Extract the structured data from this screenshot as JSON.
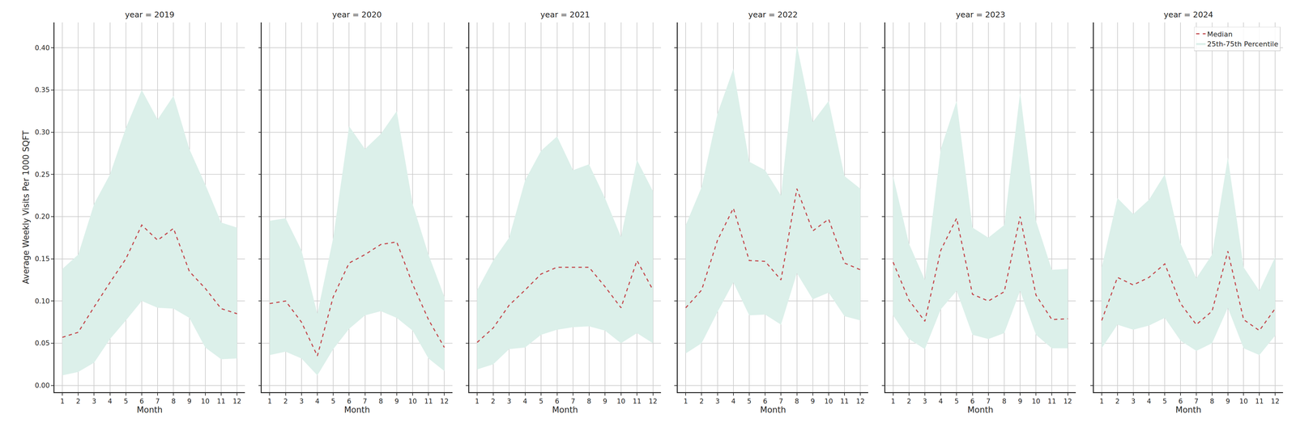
{
  "chart_data": [
    {
      "type": "line",
      "title": "year = 2019",
      "xlabel": "Month",
      "ylabel": "Average Weekly Visits Per 1000 SQFT",
      "x": [
        1,
        2,
        3,
        4,
        5,
        6,
        7,
        8,
        9,
        10,
        11,
        12
      ],
      "xlim": [
        0.5,
        12.5
      ],
      "xticks": [
        1,
        2,
        3,
        4,
        5,
        6,
        7,
        8,
        9,
        10,
        11,
        12
      ],
      "ylim": [
        -0.008,
        0.43
      ],
      "yticks": [
        {
          "value": 0,
          "label": "0.00"
        },
        {
          "value": 0.05,
          "label": "0.05"
        },
        {
          "value": 0.1,
          "label": "0.10"
        },
        {
          "value": 0.15,
          "label": "0.15"
        },
        {
          "value": 0.2,
          "label": "0.20"
        },
        {
          "value": 0.25,
          "label": "0.25"
        },
        {
          "value": 0.3,
          "label": "0.30"
        },
        {
          "value": 0.35,
          "label": "0.35"
        },
        {
          "value": 0.4,
          "label": "0.40"
        }
      ],
      "grid": true,
      "series": [
        {
          "name": "Median",
          "color": "#c44e52",
          "line_style": "dashed",
          "values": [
            0.057,
            0.063,
            0.093,
            0.122,
            0.15,
            0.19,
            0.172,
            0.186,
            0.135,
            0.115,
            0.091,
            0.085
          ]
        },
        {
          "name": "25th-75th Percentile",
          "type": "band",
          "color": "#dcf0ea",
          "lower": [
            0.012,
            0.016,
            0.027,
            0.055,
            0.077,
            0.1,
            0.092,
            0.091,
            0.08,
            0.045,
            0.031,
            0.032
          ],
          "upper": [
            0.138,
            0.155,
            0.215,
            0.25,
            0.305,
            0.35,
            0.315,
            0.343,
            0.28,
            0.238,
            0.193,
            0.187
          ]
        }
      ]
    },
    {
      "type": "line",
      "title": "year = 2020",
      "xlabel": "Month",
      "tick_labels": "x",
      "x": [
        1,
        2,
        3,
        4,
        5,
        6,
        7,
        8,
        9,
        10,
        11,
        12
      ],
      "xlim": [
        0.5,
        12.5
      ],
      "xticks": [
        1,
        2,
        3,
        4,
        5,
        6,
        7,
        8,
        9,
        10,
        11,
        12
      ],
      "ylim": [
        -0.008,
        0.43
      ],
      "yticks": [
        {
          "value": 0,
          "label": "0.00"
        },
        {
          "value": 0.05,
          "label": "0.05"
        },
        {
          "value": 0.1,
          "label": "0.10"
        },
        {
          "value": 0.15,
          "label": "0.15"
        },
        {
          "value": 0.2,
          "label": "0.20"
        },
        {
          "value": 0.25,
          "label": "0.25"
        },
        {
          "value": 0.3,
          "label": "0.30"
        },
        {
          "value": 0.35,
          "label": "0.35"
        },
        {
          "value": 0.4,
          "label": "0.40"
        }
      ],
      "grid": true,
      "series": [
        {
          "name": "Median",
          "color": "#c44e52",
          "line_style": "dashed",
          "values": [
            0.097,
            0.1,
            0.075,
            0.035,
            0.105,
            0.145,
            0.155,
            0.167,
            0.17,
            0.12,
            0.078,
            0.045
          ]
        },
        {
          "name": "25th-75th Percentile",
          "type": "band",
          "color": "#dcf0ea",
          "lower": [
            0.036,
            0.04,
            0.032,
            0.012,
            0.043,
            0.067,
            0.083,
            0.088,
            0.08,
            0.065,
            0.032,
            0.017
          ],
          "upper": [
            0.195,
            0.198,
            0.16,
            0.085,
            0.175,
            0.307,
            0.28,
            0.298,
            0.325,
            0.215,
            0.155,
            0.105
          ]
        }
      ]
    },
    {
      "type": "line",
      "title": "year = 2021",
      "xlabel": "Month",
      "tick_labels": "x",
      "x": [
        1,
        2,
        3,
        4,
        5,
        6,
        7,
        8,
        9,
        10,
        11,
        12
      ],
      "xlim": [
        0.5,
        12.5
      ],
      "xticks": [
        1,
        2,
        3,
        4,
        5,
        6,
        7,
        8,
        9,
        10,
        11,
        12
      ],
      "ylim": [
        -0.008,
        0.43
      ],
      "yticks": [
        {
          "value": 0,
          "label": "0.00"
        },
        {
          "value": 0.05,
          "label": "0.05"
        },
        {
          "value": 0.1,
          "label": "0.10"
        },
        {
          "value": 0.15,
          "label": "0.15"
        },
        {
          "value": 0.2,
          "label": "0.20"
        },
        {
          "value": 0.25,
          "label": "0.25"
        },
        {
          "value": 0.3,
          "label": "0.30"
        },
        {
          "value": 0.35,
          "label": "0.35"
        },
        {
          "value": 0.4,
          "label": "0.40"
        }
      ],
      "grid": true,
      "series": [
        {
          "name": "Median",
          "color": "#c44e52",
          "line_style": "dashed",
          "values": [
            0.051,
            0.068,
            0.095,
            0.113,
            0.132,
            0.14,
            0.14,
            0.14,
            0.117,
            0.092,
            0.148,
            0.113
          ]
        },
        {
          "name": "25th-75th Percentile",
          "type": "band",
          "color": "#dcf0ea",
          "lower": [
            0.019,
            0.025,
            0.043,
            0.045,
            0.06,
            0.066,
            0.069,
            0.07,
            0.065,
            0.05,
            0.062,
            0.05
          ],
          "upper": [
            0.113,
            0.148,
            0.175,
            0.243,
            0.278,
            0.295,
            0.255,
            0.262,
            0.222,
            0.176,
            0.267,
            0.23
          ]
        }
      ]
    },
    {
      "type": "line",
      "title": "year = 2022",
      "xlabel": "Month",
      "tick_labels": "x",
      "x": [
        1,
        2,
        3,
        4,
        5,
        6,
        7,
        8,
        9,
        10,
        11,
        12
      ],
      "xlim": [
        0.5,
        12.5
      ],
      "xticks": [
        1,
        2,
        3,
        4,
        5,
        6,
        7,
        8,
        9,
        10,
        11,
        12
      ],
      "ylim": [
        -0.008,
        0.43
      ],
      "yticks": [
        {
          "value": 0,
          "label": "0.00"
        },
        {
          "value": 0.05,
          "label": "0.05"
        },
        {
          "value": 0.1,
          "label": "0.10"
        },
        {
          "value": 0.15,
          "label": "0.15"
        },
        {
          "value": 0.2,
          "label": "0.20"
        },
        {
          "value": 0.25,
          "label": "0.25"
        },
        {
          "value": 0.3,
          "label": "0.30"
        },
        {
          "value": 0.35,
          "label": "0.35"
        },
        {
          "value": 0.4,
          "label": "0.40"
        }
      ],
      "grid": true,
      "series": [
        {
          "name": "Median",
          "color": "#c44e52",
          "line_style": "dashed",
          "values": [
            0.092,
            0.113,
            0.172,
            0.21,
            0.148,
            0.147,
            0.125,
            0.233,
            0.183,
            0.197,
            0.145,
            0.137
          ]
        },
        {
          "name": "25th-75th Percentile",
          "type": "band",
          "color": "#dcf0ea",
          "lower": [
            0.038,
            0.05,
            0.087,
            0.122,
            0.083,
            0.084,
            0.072,
            0.133,
            0.102,
            0.11,
            0.082,
            0.077
          ],
          "upper": [
            0.19,
            0.235,
            0.322,
            0.375,
            0.265,
            0.255,
            0.225,
            0.403,
            0.312,
            0.337,
            0.248,
            0.233
          ]
        }
      ]
    },
    {
      "type": "line",
      "title": "year = 2023",
      "xlabel": "Month",
      "tick_labels": "x",
      "x": [
        1,
        2,
        3,
        4,
        5,
        6,
        7,
        8,
        9,
        10,
        11,
        12
      ],
      "xlim": [
        0.5,
        12.5
      ],
      "xticks": [
        1,
        2,
        3,
        4,
        5,
        6,
        7,
        8,
        9,
        10,
        11,
        12
      ],
      "ylim": [
        -0.008,
        0.43
      ],
      "yticks": [
        {
          "value": 0,
          "label": "0.00"
        },
        {
          "value": 0.05,
          "label": "0.05"
        },
        {
          "value": 0.1,
          "label": "0.10"
        },
        {
          "value": 0.15,
          "label": "0.15"
        },
        {
          "value": 0.2,
          "label": "0.20"
        },
        {
          "value": 0.25,
          "label": "0.25"
        },
        {
          "value": 0.3,
          "label": "0.30"
        },
        {
          "value": 0.35,
          "label": "0.35"
        },
        {
          "value": 0.4,
          "label": "0.40"
        }
      ],
      "grid": true,
      "series": [
        {
          "name": "Median",
          "color": "#c44e52",
          "line_style": "dashed",
          "values": [
            0.146,
            0.101,
            0.076,
            0.16,
            0.198,
            0.108,
            0.1,
            0.111,
            0.2,
            0.107,
            0.078,
            0.079
          ]
        },
        {
          "name": "25th-75th Percentile",
          "type": "band",
          "color": "#dcf0ea",
          "lower": [
            0.083,
            0.055,
            0.043,
            0.09,
            0.112,
            0.06,
            0.055,
            0.062,
            0.112,
            0.06,
            0.044,
            0.044
          ],
          "upper": [
            0.248,
            0.168,
            0.125,
            0.28,
            0.337,
            0.187,
            0.175,
            0.19,
            0.347,
            0.195,
            0.137,
            0.138
          ]
        }
      ]
    },
    {
      "type": "line",
      "title": "year = 2024",
      "xlabel": "Month",
      "tick_labels": "x",
      "legend": "upper right",
      "x": [
        1,
        2,
        3,
        4,
        5,
        6,
        7,
        8,
        9,
        10,
        11,
        12
      ],
      "xlim": [
        0.5,
        12.5
      ],
      "xticks": [
        1,
        2,
        3,
        4,
        5,
        6,
        7,
        8,
        9,
        10,
        11,
        12
      ],
      "ylim": [
        -0.008,
        0.43
      ],
      "yticks": [
        {
          "value": 0,
          "label": "0.00"
        },
        {
          "value": 0.05,
          "label": "0.05"
        },
        {
          "value": 0.1,
          "label": "0.10"
        },
        {
          "value": 0.15,
          "label": "0.15"
        },
        {
          "value": 0.2,
          "label": "0.20"
        },
        {
          "value": 0.25,
          "label": "0.25"
        },
        {
          "value": 0.3,
          "label": "0.30"
        },
        {
          "value": 0.35,
          "label": "0.35"
        },
        {
          "value": 0.4,
          "label": "0.40"
        }
      ],
      "grid": true,
      "series": [
        {
          "name": "Median",
          "color": "#c44e52",
          "line_style": "dashed",
          "values": [
            0.077,
            0.128,
            0.119,
            0.128,
            0.144,
            0.097,
            0.072,
            0.088,
            0.159,
            0.078,
            0.065,
            0.091
          ]
        },
        {
          "name": "25th-75th Percentile",
          "type": "band",
          "color": "#dcf0ea",
          "lower": [
            0.044,
            0.072,
            0.066,
            0.071,
            0.08,
            0.053,
            0.041,
            0.05,
            0.092,
            0.044,
            0.036,
            0.059
          ],
          "upper": [
            0.14,
            0.222,
            0.203,
            0.22,
            0.25,
            0.168,
            0.127,
            0.155,
            0.27,
            0.14,
            0.112,
            0.152
          ]
        }
      ]
    }
  ]
}
